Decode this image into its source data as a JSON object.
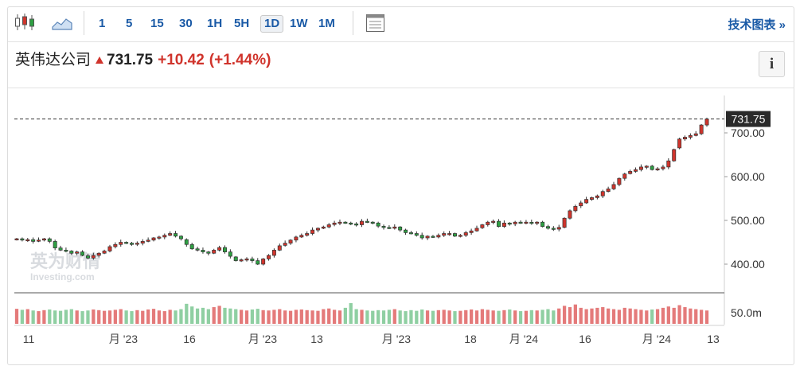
{
  "toolbar": {
    "chart_type_icon": "candlestick-icon",
    "area_icon": "area-chart-icon",
    "intervals": [
      "1",
      "5",
      "15",
      "30",
      "1H",
      "5H",
      "1D",
      "1W",
      "1M"
    ],
    "active_interval": "1D",
    "layout_icon": "table-layout-icon",
    "tech_chart_label": "技术图表 »"
  },
  "header": {
    "name": "英伟达公司",
    "price": "731.75",
    "change": "+10.42",
    "change_pct": "(+1.44%)",
    "direction": "up",
    "info_label": "i"
  },
  "watermark": {
    "brand": "英为财情",
    "sub": "Investing.com"
  },
  "colors": {
    "up": "#d0342c",
    "down": "#2ea043",
    "up_vol": "#e47a7a",
    "down_vol": "#8fcfa2",
    "link": "#1a5aa6"
  },
  "chart_data": {
    "type": "candlestick",
    "price_axis": {
      "ticks": [
        400,
        500,
        600,
        700
      ],
      "tick_labels": [
        "400.00",
        "500.00",
        "600.00",
        "700.00"
      ],
      "range": [
        375,
        750
      ]
    },
    "current_price_label": "731.75",
    "current_price": 731.75,
    "volume_axis": {
      "tick_labels": [
        "50.0m"
      ]
    },
    "x_labels": [
      "11",
      "月 '23",
      "16",
      "月 '23",
      "13",
      "月 '23",
      "18",
      "月 '24",
      "16",
      "月 '24",
      "13"
    ],
    "closes": [
      458,
      455,
      456,
      452,
      455,
      458,
      452,
      437,
      432,
      430,
      425,
      428,
      420,
      414,
      420,
      425,
      430,
      440,
      445,
      450,
      448,
      445,
      448,
      452,
      455,
      460,
      462,
      466,
      470,
      464,
      458,
      445,
      435,
      432,
      428,
      425,
      432,
      438,
      428,
      418,
      408,
      410,
      412,
      408,
      400,
      412,
      420,
      432,
      442,
      448,
      455,
      462,
      466,
      470,
      478,
      482,
      485,
      490,
      494,
      496,
      494,
      492,
      490,
      498,
      496,
      494,
      487,
      484,
      482,
      485,
      478,
      472,
      470,
      466,
      460,
      464,
      462,
      466,
      470,
      470,
      464,
      466,
      472,
      476,
      482,
      490,
      496,
      498,
      486,
      494,
      492,
      496,
      494,
      496,
      494,
      496,
      486,
      482,
      480,
      484,
      505,
      522,
      532,
      540,
      548,
      552,
      556,
      566,
      572,
      582,
      596,
      606,
      612,
      616,
      622,
      624,
      616,
      618,
      622,
      636,
      662,
      686,
      690,
      694,
      698,
      718,
      731.75
    ],
    "volumes": [
      45,
      42,
      44,
      40,
      38,
      41,
      43,
      40,
      39,
      42,
      44,
      40,
      38,
      40,
      43,
      41,
      39,
      40,
      42,
      44,
      40,
      38,
      41,
      39,
      43,
      45,
      40,
      38,
      42,
      40,
      44,
      60,
      52,
      46,
      48,
      44,
      50,
      54,
      48,
      46,
      44,
      42,
      40,
      43,
      45,
      41,
      40,
      42,
      44,
      40,
      39,
      42,
      43,
      41,
      40,
      39,
      44,
      46,
      42,
      40,
      48,
      62,
      44,
      42,
      40,
      39,
      41,
      40,
      42,
      44,
      40,
      38,
      41,
      39,
      43,
      40,
      39,
      41,
      42,
      40,
      38,
      39,
      41,
      43,
      40,
      44,
      42,
      40,
      39,
      41,
      43,
      40,
      38,
      39,
      41,
      40,
      42,
      44,
      40,
      46,
      54,
      50,
      58,
      48,
      44,
      46,
      48,
      50,
      46,
      44,
      42,
      48,
      46,
      44,
      42,
      40,
      43,
      44,
      48,
      52,
      48,
      56,
      50,
      46,
      44,
      42,
      40
    ]
  }
}
